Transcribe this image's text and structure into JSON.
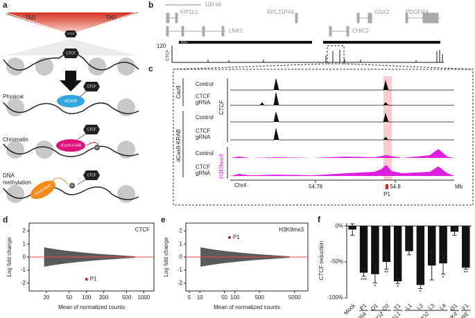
{
  "panel_labels": [
    "a",
    "b",
    "c",
    "d",
    "e",
    "f"
  ],
  "schematic": {
    "tad": [
      "TAD",
      "TAD"
    ],
    "ctcf": "CTCF",
    "rows": [
      {
        "title": [
          "Physical"
        ],
        "effector": "dCas9"
      },
      {
        "title": [
          "Chromatin"
        ],
        "effector": "dCas9-KRAB"
      },
      {
        "title": [
          "DNA",
          "methylation"
        ],
        "effector": "dCas9-DNMT"
      }
    ],
    "me": "Me"
  },
  "browser": {
    "scale": "100 kb",
    "genes": [
      "FIP1L1",
      "LNX1",
      "RPL21P44",
      "CHIC2",
      "GSX2",
      "PDGFRA"
    ],
    "tads": "TADs",
    "track_max": "120",
    "track": "CTCF"
  },
  "zoom": {
    "groups": [
      "Cas9",
      "dCas9-KRAB"
    ],
    "conditions": [
      [
        "Control"
      ],
      [
        "CTCF",
        "gRNA"
      ],
      [
        "Control"
      ],
      [
        "CTCF",
        "gRNA"
      ],
      [
        "Control"
      ],
      [
        "CTCF",
        "gRNA"
      ]
    ],
    "marks": [
      "CTCF",
      "H3K9me3"
    ],
    "chrom": "Chr4",
    "ticks": [
      "54.78",
      "54.8"
    ],
    "unit": "Mb",
    "site": "P1"
  },
  "chart_data": [
    {
      "type": "scatter",
      "inset_label": "CTCF",
      "inset_color": "#222222",
      "x_label": "Mean of normalized counts",
      "y_label": "Log fold change",
      "log_x": true,
      "xlim": [
        10,
        1500
      ],
      "xticks": [
        20,
        50,
        100,
        200,
        500,
        1000
      ],
      "ylim": [
        -2.6,
        2.6
      ],
      "yticks": [
        2,
        1,
        0,
        -1,
        -2
      ],
      "zero_color": "#e05050",
      "cloud_color": "#5a5a5a",
      "series": [
        {
          "name": "P1",
          "color": "#b0203a",
          "x": [
            100
          ],
          "values": [
            -1.7
          ]
        }
      ]
    },
    {
      "type": "scatter",
      "inset_label": "H3K9me3",
      "inset_color": "#e020e0",
      "x_label": "Mean of normalized counts",
      "y_label": "Log fold change",
      "log_x": true,
      "xlim": [
        4,
        12000
      ],
      "xticks": [
        5,
        10,
        50,
        100,
        500,
        5000
      ],
      "ylim": [
        -2.6,
        2.6
      ],
      "yticks": [
        2,
        1,
        0,
        -1,
        -2
      ],
      "zero_color": "#e05050",
      "cloud_color": "#5a5a5a",
      "series": [
        {
          "name": "P1",
          "color": "#b0203a",
          "x": [
            70
          ],
          "values": [
            1.5
          ]
        }
      ]
    },
    {
      "type": "bar",
      "y_label": "CTCF reduction",
      "color": "#111111",
      "categories": [
        "Mock",
        "P1",
        "O1",
        "O2",
        "T1",
        "L1",
        "L2",
        "L3",
        "L4",
        "G1",
        "F1"
      ],
      "values": [
        -5,
        -65,
        -67,
        -50,
        -77,
        -35,
        -82,
        -55,
        -52,
        -8,
        -58
      ],
      "errors": [
        8,
        5,
        12,
        10,
        3,
        5,
        5,
        20,
        15,
        5,
        2
      ],
      "significance": [
        null,
        "***",
        "*",
        "**",
        "*",
        null,
        "*",
        null,
        "*",
        null,
        "**"
      ],
      "groups": [
        {
          "label": "PDGFRA",
          "categories": [
            "P1"
          ]
        },
        {
          "label": "OLIG2",
          "categories": [
            "O1",
            "O2"
          ]
        },
        {
          "label": "TAL1",
          "categories": [
            "T1"
          ]
        },
        {
          "label": "LMO2",
          "categories": [
            "L1",
            "L2",
            "L3",
            "L4"
          ]
        },
        {
          "label": "GRIK4",
          "categories": [
            "G1"
          ]
        },
        {
          "label": "FIRRE",
          "categories": [
            "F1"
          ]
        }
      ],
      "ylim": [
        -100,
        4
      ],
      "yticks": [
        {
          "value": 0,
          "label": "0%"
        },
        {
          "value": -50,
          "label": "-50%"
        },
        {
          "value": -100,
          "label": "-100%"
        }
      ]
    }
  ]
}
